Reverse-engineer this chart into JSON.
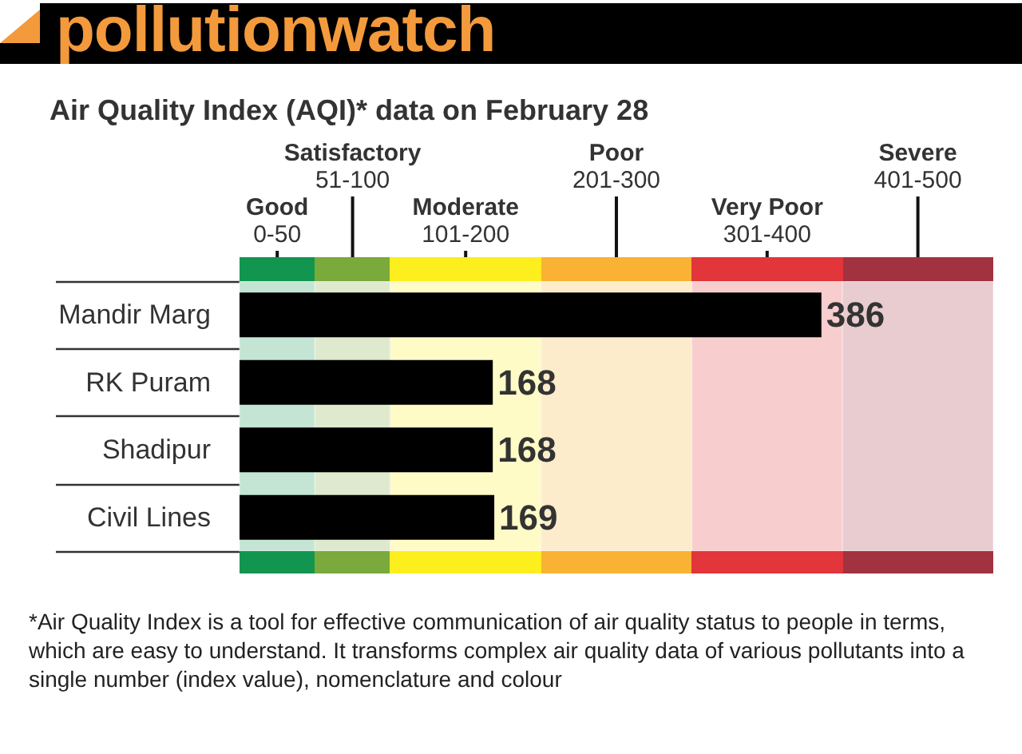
{
  "chart_data": {
    "type": "bar",
    "orientation": "horizontal",
    "title": "pollutionwatch",
    "subtitle": "Air Quality Index (AQI)* data on February 28",
    "categories": [
      "Mandir Marg",
      "RK Puram",
      "Shadipur",
      "Civil Lines"
    ],
    "values": [
      386,
      168,
      168,
      169
    ],
    "color": "#000000",
    "data_labels": true,
    "xlim": [
      0,
      500
    ],
    "tick_labels": "y",
    "bands": [
      {
        "axis": "x",
        "from": 0,
        "to": 50,
        "label": "Good\n0-50",
        "color": "#12964f"
      },
      {
        "axis": "x",
        "from": 50,
        "to": 100,
        "label": "Satisfactory\n51-100",
        "color": "#7aa93c"
      },
      {
        "axis": "x",
        "from": 100,
        "to": 200,
        "label": "Moderate\n101-200",
        "color": "#fdee1e"
      },
      {
        "axis": "x",
        "from": 200,
        "to": 300,
        "label": "Poor\n201-300",
        "color": "#f9b233"
      },
      {
        "axis": "x",
        "from": 300,
        "to": 400,
        "label": "Very Poor\n301-400",
        "color": "#e2363a"
      },
      {
        "axis": "x",
        "from": 400,
        "to": 500,
        "label": "Severe\n401-500",
        "color": "#a2323f"
      }
    ],
    "annotations": [
      "*Air Quality Index is a tool for effective communication of air quality status to people in terms, which are easy to understand. It transforms complex air quality data of various pollutants into a single number (index value), nomenclature and colour"
    ]
  }
}
